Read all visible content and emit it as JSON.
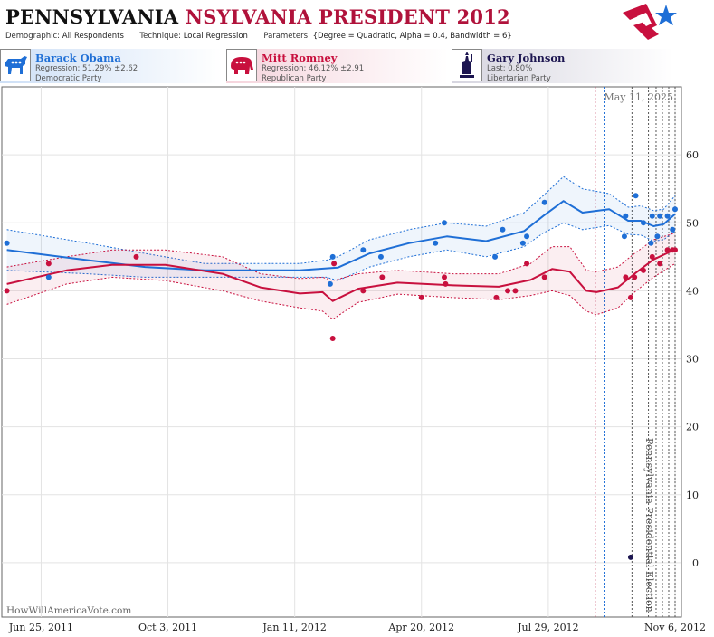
{
  "header": {
    "title_main": "PENNSYLVANIA",
    "title_sub": "NSYLVANIA PRESIDENT 2012",
    "params": {
      "demographic_label": "Demographic:",
      "demographic_value": "All Respondents",
      "technique_label": "Technique:",
      "technique_value": "Local Regression",
      "parameters_label": "Parameters:",
      "parameters_value": "{Degree = Quadratic, Alpha = 0.4, Bandwidth = 6}"
    }
  },
  "legend": [
    {
      "name": "Barack Obama",
      "line1": "Regression: 51.29% ±2.62",
      "line2": "Democratic Party",
      "color": "#1f6fd6",
      "icon": "donkey-icon"
    },
    {
      "name": "Mitt Romney",
      "line1": "Regression: 46.12% ±2.91",
      "line2": "Republican Party",
      "color": "#c8103e",
      "icon": "elephant-icon"
    },
    {
      "name": "Gary Johnson",
      "line1": "Last: 0.80%",
      "line2": "Libertarian Party",
      "color": "#1c1550",
      "icon": "liberty-icon"
    }
  ],
  "chart_data": {
    "type": "line",
    "date_label": "May 11, 2025",
    "watermark": "HowWillAmericaVote.com",
    "event_label": "Pennsylvania Presidential Election",
    "x_ticks": [
      {
        "date": "2011-06-25",
        "label": "Jun 25, 2011"
      },
      {
        "date": "2011-10-03",
        "label": "Oct 3, 2011"
      },
      {
        "date": "2012-01-11",
        "label": "Jan 11, 2012"
      },
      {
        "date": "2012-04-20",
        "label": "Apr 20, 2012"
      },
      {
        "date": "2012-07-29",
        "label": "Jul 29, 2012"
      },
      {
        "date": "2012-11-06",
        "label": "Nov 6, 2012"
      }
    ],
    "y_ticks": [
      0,
      10,
      20,
      30,
      40,
      50,
      60
    ],
    "xlim": [
      "2011-05-25",
      "2012-11-11"
    ],
    "ylim": [
      -8,
      70
    ],
    "grid": true,
    "series": [
      {
        "name": "Barack Obama",
        "color": "#1f6fd6",
        "points": [
          [
            "2011-05-29",
            47
          ],
          [
            "2011-07-01",
            42
          ],
          [
            "2012-02-08",
            41
          ],
          [
            "2012-02-10",
            45
          ],
          [
            "2012-03-05",
            46
          ],
          [
            "2012-03-19",
            45
          ],
          [
            "2012-05-01",
            47
          ],
          [
            "2012-05-08",
            50
          ],
          [
            "2012-06-17",
            45
          ],
          [
            "2012-06-23",
            49
          ],
          [
            "2012-07-09",
            47
          ],
          [
            "2012-07-12",
            48
          ],
          [
            "2012-07-26",
            53
          ],
          [
            "2012-09-27",
            48
          ],
          [
            "2012-09-28",
            51
          ],
          [
            "2012-10-06",
            54
          ],
          [
            "2012-10-12",
            50
          ],
          [
            "2012-10-18",
            47
          ],
          [
            "2012-10-19",
            51
          ],
          [
            "2012-10-23",
            48
          ],
          [
            "2012-10-25",
            51
          ],
          [
            "2012-10-31",
            51
          ],
          [
            "2012-11-04",
            49
          ],
          [
            "2012-11-06",
            52
          ]
        ],
        "trend": [
          [
            "2011-05-29",
            46
          ],
          [
            "2011-08-01",
            44.5
          ],
          [
            "2011-09-15",
            43.5
          ],
          [
            "2011-11-01",
            43
          ],
          [
            "2012-01-15",
            43
          ],
          [
            "2012-02-05",
            43.3
          ],
          [
            "2012-02-14",
            43.4
          ],
          [
            "2012-03-10",
            45.5
          ],
          [
            "2012-04-10",
            47
          ],
          [
            "2012-05-10",
            48
          ],
          [
            "2012-06-10",
            47.3
          ],
          [
            "2012-07-10",
            48.8
          ],
          [
            "2012-07-25",
            51
          ],
          [
            "2012-08-10",
            53.2
          ],
          [
            "2012-08-25",
            51.5
          ],
          [
            "2012-09-15",
            52
          ],
          [
            "2012-09-30",
            50.3
          ],
          [
            "2012-10-10",
            50.3
          ],
          [
            "2012-10-20",
            49.5
          ],
          [
            "2012-10-28",
            49.8
          ],
          [
            "2012-11-06",
            51.3
          ]
        ],
        "upper": [
          [
            "2011-05-29",
            49
          ],
          [
            "2011-08-01",
            47
          ],
          [
            "2011-09-15",
            45.5
          ],
          [
            "2011-11-01",
            44
          ],
          [
            "2012-01-15",
            44
          ],
          [
            "2012-02-05",
            44.5
          ],
          [
            "2012-02-14",
            45
          ],
          [
            "2012-03-10",
            47.5
          ],
          [
            "2012-04-10",
            49
          ],
          [
            "2012-05-10",
            50
          ],
          [
            "2012-06-10",
            49.5
          ],
          [
            "2012-07-10",
            51.5
          ],
          [
            "2012-07-25",
            54
          ],
          [
            "2012-08-10",
            56.8
          ],
          [
            "2012-08-25",
            55
          ],
          [
            "2012-09-15",
            54.3
          ],
          [
            "2012-09-30",
            52.3
          ],
          [
            "2012-10-10",
            52.5
          ],
          [
            "2012-10-20",
            51.8
          ],
          [
            "2012-10-28",
            52
          ],
          [
            "2012-11-06",
            54
          ]
        ],
        "lower": [
          [
            "2011-05-29",
            43
          ],
          [
            "2011-08-01",
            42.5
          ],
          [
            "2011-09-15",
            42
          ],
          [
            "2011-11-01",
            42
          ],
          [
            "2012-01-15",
            42
          ],
          [
            "2012-02-05",
            42
          ],
          [
            "2012-02-14",
            41.5
          ],
          [
            "2012-03-10",
            43.5
          ],
          [
            "2012-04-10",
            45
          ],
          [
            "2012-05-10",
            46
          ],
          [
            "2012-06-10",
            45
          ],
          [
            "2012-07-10",
            46.5
          ],
          [
            "2012-07-25",
            48.5
          ],
          [
            "2012-08-10",
            50
          ],
          [
            "2012-08-25",
            49
          ],
          [
            "2012-09-15",
            49.6
          ],
          [
            "2012-09-30",
            48.3
          ],
          [
            "2012-10-10",
            48.2
          ],
          [
            "2012-10-20",
            47.3
          ],
          [
            "2012-10-28",
            47.5
          ],
          [
            "2012-11-06",
            48.8
          ]
        ]
      },
      {
        "name": "Mitt Romney",
        "color": "#c8103e",
        "points": [
          [
            "2011-05-29",
            40
          ],
          [
            "2011-07-01",
            44
          ],
          [
            "2011-09-08",
            45
          ],
          [
            "2012-02-10",
            33
          ],
          [
            "2012-02-11",
            44
          ],
          [
            "2012-03-05",
            40
          ],
          [
            "2012-03-20",
            42
          ],
          [
            "2012-04-20",
            39
          ],
          [
            "2012-05-08",
            42
          ],
          [
            "2012-05-09",
            41
          ],
          [
            "2012-06-18",
            39
          ],
          [
            "2012-06-27",
            40
          ],
          [
            "2012-07-03",
            40
          ],
          [
            "2012-07-12",
            44
          ],
          [
            "2012-07-26",
            42
          ],
          [
            "2012-09-28",
            42
          ],
          [
            "2012-10-02",
            39
          ],
          [
            "2012-10-05",
            42
          ],
          [
            "2012-10-12",
            43
          ],
          [
            "2012-10-19",
            45
          ],
          [
            "2012-10-25",
            44
          ],
          [
            "2012-10-31",
            46
          ],
          [
            "2012-11-04",
            46
          ],
          [
            "2012-11-06",
            46
          ]
        ],
        "trend": [
          [
            "2011-05-29",
            41
          ],
          [
            "2011-07-15",
            43
          ],
          [
            "2011-08-20",
            43.8
          ],
          [
            "2011-10-01",
            43.8
          ],
          [
            "2011-11-15",
            42.5
          ],
          [
            "2011-12-15",
            40.5
          ],
          [
            "2012-01-15",
            39.6
          ],
          [
            "2012-02-02",
            39.8
          ],
          [
            "2012-02-10",
            38.5
          ],
          [
            "2012-03-01",
            40.3
          ],
          [
            "2012-04-01",
            41.2
          ],
          [
            "2012-05-15",
            40.8
          ],
          [
            "2012-06-20",
            40.6
          ],
          [
            "2012-07-15",
            41.6
          ],
          [
            "2012-08-01",
            43.2
          ],
          [
            "2012-08-15",
            42.8
          ],
          [
            "2012-08-28",
            40
          ],
          [
            "2012-09-05",
            39.8
          ],
          [
            "2012-09-22",
            40.5
          ],
          [
            "2012-10-05",
            42.5
          ],
          [
            "2012-10-20",
            44.6
          ],
          [
            "2012-11-06",
            46.1
          ]
        ],
        "upper": [
          [
            "2011-05-29",
            43.5
          ],
          [
            "2011-07-15",
            45
          ],
          [
            "2011-08-20",
            46
          ],
          [
            "2011-10-01",
            46
          ],
          [
            "2011-11-15",
            45
          ],
          [
            "2011-12-15",
            42.5
          ],
          [
            "2012-01-15",
            41.8
          ],
          [
            "2012-02-02",
            42
          ],
          [
            "2012-02-10",
            41.5
          ],
          [
            "2012-03-01",
            42.5
          ],
          [
            "2012-04-01",
            43
          ],
          [
            "2012-05-15",
            42.5
          ],
          [
            "2012-06-20",
            42.5
          ],
          [
            "2012-07-15",
            44
          ],
          [
            "2012-08-01",
            46.5
          ],
          [
            "2012-08-15",
            46.5
          ],
          [
            "2012-08-28",
            43
          ],
          [
            "2012-09-05",
            42.8
          ],
          [
            "2012-09-22",
            43.5
          ],
          [
            "2012-10-05",
            45.5
          ],
          [
            "2012-10-20",
            47.5
          ],
          [
            "2012-11-06",
            48.5
          ]
        ],
        "lower": [
          [
            "2011-05-29",
            38
          ],
          [
            "2011-07-15",
            41
          ],
          [
            "2011-08-20",
            42
          ],
          [
            "2011-10-01",
            41.5
          ],
          [
            "2011-11-15",
            40
          ],
          [
            "2011-12-15",
            38.5
          ],
          [
            "2012-01-15",
            37.5
          ],
          [
            "2012-02-02",
            37
          ],
          [
            "2012-02-10",
            35.8
          ],
          [
            "2012-03-01",
            38.3
          ],
          [
            "2012-04-01",
            39.5
          ],
          [
            "2012-05-15",
            39
          ],
          [
            "2012-06-20",
            38.7
          ],
          [
            "2012-07-15",
            39.3
          ],
          [
            "2012-08-01",
            40
          ],
          [
            "2012-08-15",
            39.3
          ],
          [
            "2012-08-28",
            37
          ],
          [
            "2012-09-05",
            36.5
          ],
          [
            "2012-09-22",
            37.5
          ],
          [
            "2012-10-05",
            39.8
          ],
          [
            "2012-10-20",
            42
          ],
          [
            "2012-11-06",
            44
          ]
        ]
      },
      {
        "name": "Gary Johnson",
        "color": "#1c1550",
        "points": [
          [
            "2012-10-02",
            0.8
          ]
        ]
      }
    ],
    "event_lines": [
      {
        "date": "2012-09-04",
        "color": "#b0123b"
      },
      {
        "date": "2012-09-11",
        "color": "#1f6fd6"
      },
      {
        "date": "2012-10-03",
        "color": "#555555"
      },
      {
        "date": "2012-10-16",
        "color": "#555555"
      },
      {
        "date": "2012-10-22",
        "color": "#555555"
      },
      {
        "date": "2012-10-27",
        "color": "#555555"
      },
      {
        "date": "2012-11-01",
        "color": "#555555"
      },
      {
        "date": "2012-11-06",
        "color": "#555555"
      }
    ]
  }
}
